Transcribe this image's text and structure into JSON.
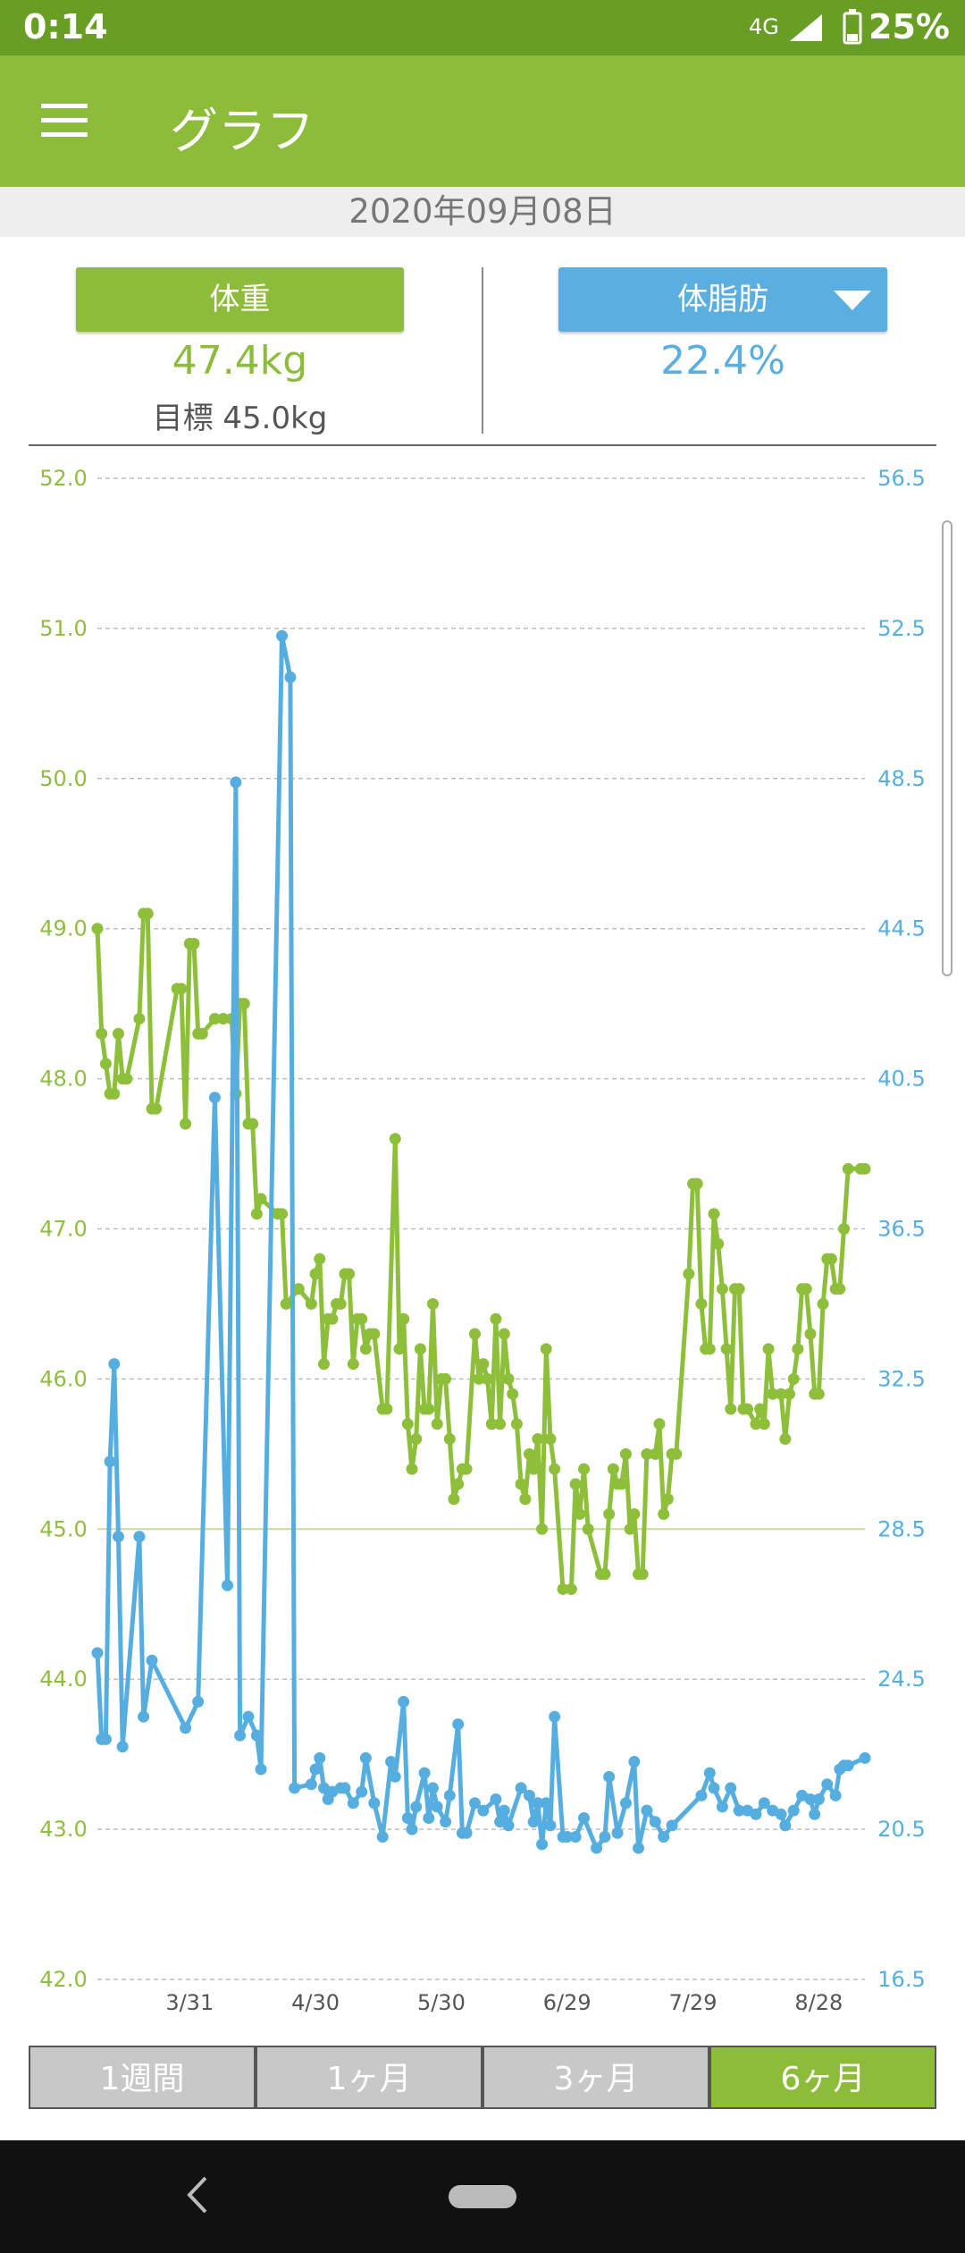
{
  "status": {
    "time": "0:14",
    "network": "4G",
    "battery": "25%"
  },
  "appbar": {
    "title": "グラフ"
  },
  "date": "2020年09月08日",
  "summary": {
    "weight_button": "体重",
    "weight": "47.4kg",
    "goal": "目標 45.0kg",
    "fat_button": "体脂肪",
    "fat": "22.4%"
  },
  "tabs": [
    "1週間",
    "1ヶ月",
    "3ヶ月",
    "6ヶ月"
  ],
  "active_tab": 3,
  "chart_data": {
    "type": "line",
    "xlim": [
      "3/9",
      "9/8"
    ],
    "xticks": [
      "3/31",
      "4/30",
      "5/30",
      "6/29",
      "7/29",
      "8/28"
    ],
    "ylim": [
      42,
      52
    ],
    "yticks": [
      {
        "value": 42,
        "label": "42.0"
      },
      {
        "value": 43,
        "label": "43.0"
      },
      {
        "value": 44,
        "label": "44.0"
      },
      {
        "value": 45,
        "label": "45.0"
      },
      {
        "value": 46,
        "label": "46.0"
      },
      {
        "value": 47,
        "label": "47.0"
      },
      {
        "value": 48,
        "label": "48.0"
      },
      {
        "value": 49,
        "label": "49.0"
      },
      {
        "value": 50,
        "label": "50.0"
      },
      {
        "value": 51,
        "label": "51.0"
      },
      {
        "value": 52,
        "label": "52.0"
      }
    ],
    "y2lim": [
      16.5,
      56.5
    ],
    "y2ticks": [
      16.5,
      20.5,
      24.5,
      28.5,
      32.5,
      36.5,
      40.5,
      44.5,
      48.5,
      52.5,
      56.5
    ],
    "grid": true,
    "goal": 45,
    "goal_color": "#c8dc9a",
    "series": [
      {
        "name": "体重",
        "color": "#8dbf3a",
        "x": [
          "3/9",
          "3/10",
          "3/11",
          "3/12",
          "3/13",
          "3/14",
          "3/15",
          "3/16",
          "3/19",
          "3/20",
          "3/21",
          "3/22",
          "3/23",
          "3/28",
          "3/29",
          "3/30",
          "3/31",
          "4/1",
          "4/2",
          "4/3",
          "4/6",
          "4/8",
          "4/10",
          "4/11",
          "4/12",
          "4/13",
          "4/14",
          "4/15",
          "4/16",
          "4/17",
          "4/21",
          "4/22",
          "4/23",
          "4/26",
          "4/29",
          "4/30",
          "5/1",
          "5/2",
          "5/3",
          "5/4",
          "5/5",
          "5/6",
          "5/7",
          "5/8",
          "5/9",
          "5/10",
          "5/11",
          "5/12",
          "5/13",
          "5/14",
          "5/16",
          "5/17",
          "5/19",
          "5/20",
          "5/21",
          "5/22",
          "5/23",
          "5/24",
          "5/25",
          "5/26",
          "5/27",
          "5/28",
          "5/29",
          "5/30",
          "5/31",
          "6/1",
          "6/2",
          "6/3",
          "6/4",
          "6/5",
          "6/7",
          "6/8",
          "6/9",
          "6/10",
          "6/11",
          "6/12",
          "6/13",
          "6/14",
          "6/15",
          "6/16",
          "6/17",
          "6/18",
          "6/19",
          "6/20",
          "6/21",
          "6/22",
          "6/23",
          "6/24",
          "6/25",
          "6/26",
          "6/28",
          "6/30",
          "7/1",
          "7/2",
          "7/3",
          "7/4",
          "7/7",
          "7/8",
          "7/9",
          "7/10",
          "7/11",
          "7/12",
          "7/13",
          "7/14",
          "7/15",
          "7/16",
          "7/17",
          "7/18",
          "7/20",
          "7/21",
          "7/22",
          "7/23",
          "7/24",
          "7/25",
          "7/28",
          "7/29",
          "7/30",
          "7/31",
          "8/1",
          "8/2",
          "8/3",
          "8/4",
          "8/5",
          "8/6",
          "8/7",
          "8/8",
          "8/9",
          "8/10",
          "8/11",
          "8/13",
          "8/14",
          "8/15",
          "8/16",
          "8/17",
          "8/19",
          "8/20",
          "8/21",
          "8/22",
          "8/23",
          "8/24",
          "8/25",
          "8/26",
          "8/27",
          "8/28",
          "8/29",
          "8/30",
          "8/31",
          "9/1",
          "9/2",
          "9/3",
          "9/4",
          "9/7",
          "9/8"
        ],
        "values": [
          49.0,
          48.3,
          48.1,
          47.9,
          47.9,
          48.3,
          48.0,
          48.0,
          48.4,
          49.1,
          49.1,
          47.8,
          47.8,
          48.6,
          48.6,
          47.7,
          48.9,
          48.9,
          48.3,
          48.3,
          48.4,
          48.4,
          48.4,
          47.9,
          48.5,
          48.5,
          47.7,
          47.7,
          47.1,
          47.2,
          47.1,
          47.1,
          46.5,
          46.6,
          46.5,
          46.7,
          46.8,
          46.1,
          46.4,
          46.4,
          46.5,
          46.5,
          46.7,
          46.7,
          46.1,
          46.4,
          46.4,
          46.2,
          46.3,
          46.3,
          45.8,
          45.8,
          47.6,
          46.2,
          46.4,
          45.7,
          45.4,
          45.6,
          46.2,
          45.8,
          45.8,
          46.5,
          45.7,
          46.0,
          46.0,
          45.6,
          45.2,
          45.3,
          45.4,
          45.4,
          46.3,
          46.0,
          46.1,
          46.0,
          45.7,
          46.4,
          45.7,
          46.3,
          46.0,
          45.9,
          45.7,
          45.3,
          45.2,
          45.5,
          45.4,
          45.6,
          45.0,
          46.2,
          45.6,
          45.4,
          44.6,
          44.6,
          45.3,
          45.1,
          45.4,
          45.0,
          44.7,
          44.7,
          45.1,
          45.4,
          45.3,
          45.3,
          45.5,
          45.0,
          45.1,
          44.7,
          44.7,
          45.5,
          45.5,
          45.7,
          45.1,
          45.2,
          45.5,
          45.5,
          46.7,
          47.3,
          47.3,
          46.5,
          46.2,
          46.2,
          47.1,
          46.9,
          46.6,
          46.2,
          45.8,
          46.6,
          46.6,
          45.8,
          45.8,
          45.7,
          45.8,
          45.7,
          46.2,
          45.9,
          45.9,
          45.6,
          45.9,
          46.0,
          46.2,
          46.6,
          46.6,
          46.3,
          45.9,
          45.9,
          46.5,
          46.8,
          46.8,
          46.6,
          46.6,
          47.0,
          47.4,
          47.4,
          47.4
        ]
      },
      {
        "name": "体脂肪",
        "color": "#56aee0",
        "axis": "y2",
        "x": [
          "3/9",
          "3/10",
          "3/11",
          "3/12",
          "3/13",
          "3/14",
          "3/15",
          "3/19",
          "3/20",
          "3/22",
          "3/30",
          "4/2",
          "4/6",
          "4/9",
          "4/11",
          "4/12",
          "4/14",
          "4/16",
          "4/17",
          "4/22",
          "4/24",
          "4/25",
          "4/29",
          "4/30",
          "5/1",
          "5/2",
          "5/3",
          "5/4",
          "5/6",
          "5/7",
          "5/9",
          "5/11",
          "5/12",
          "5/14",
          "5/16",
          "5/18",
          "5/19",
          "5/21",
          "5/22",
          "5/23",
          "5/24",
          "5/26",
          "5/27",
          "5/28",
          "5/29",
          "5/31",
          "6/1",
          "6/3",
          "6/4",
          "6/5",
          "6/7",
          "6/9",
          "6/12",
          "6/13",
          "6/14",
          "6/15",
          "6/18",
          "6/20",
          "6/21",
          "6/22",
          "6/23",
          "6/24",
          "6/25",
          "6/26",
          "6/28",
          "6/29",
          "7/1",
          "7/3",
          "7/6",
          "7/8",
          "7/9",
          "7/11",
          "7/13",
          "7/15",
          "7/16",
          "7/18",
          "7/20",
          "7/22",
          "7/24",
          "7/31",
          "8/2",
          "8/3",
          "8/5",
          "8/7",
          "8/9",
          "8/11",
          "8/13",
          "8/15",
          "8/17",
          "8/19",
          "8/20",
          "8/22",
          "8/24",
          "8/26",
          "8/27",
          "8/28",
          "8/30",
          "9/1",
          "9/2",
          "9/3",
          "9/4",
          "9/8"
        ],
        "values": [
          25.2,
          22.9,
          22.9,
          30.3,
          32.9,
          28.3,
          22.7,
          28.3,
          23.5,
          25.0,
          23.2,
          23.9,
          40.0,
          27.0,
          48.4,
          23.0,
          23.5,
          23.0,
          22.1,
          52.3,
          51.2,
          21.6,
          21.7,
          22.1,
          22.4,
          21.6,
          21.3,
          21.5,
          21.6,
          21.6,
          21.2,
          21.5,
          22.4,
          21.2,
          20.3,
          22.3,
          21.9,
          23.9,
          20.8,
          20.5,
          21.1,
          22.0,
          20.8,
          21.6,
          21.1,
          20.7,
          21.4,
          23.3,
          20.4,
          20.4,
          21.2,
          21.0,
          21.3,
          20.7,
          21.0,
          20.6,
          21.6,
          21.4,
          20.7,
          21.2,
          20.1,
          21.2,
          20.6,
          23.5,
          20.3,
          20.3,
          20.3,
          20.8,
          20.0,
          20.3,
          21.9,
          20.4,
          21.2,
          22.3,
          20.0,
          21.0,
          20.7,
          20.3,
          20.6,
          21.4,
          22.0,
          21.6,
          21.1,
          21.6,
          21.0,
          21.0,
          20.9,
          21.2,
          21.0,
          20.9,
          20.6,
          21.0,
          21.4,
          21.3,
          20.9,
          21.3,
          21.7,
          21.4,
          22.1,
          22.2,
          22.2,
          22.4
        ]
      }
    ]
  }
}
